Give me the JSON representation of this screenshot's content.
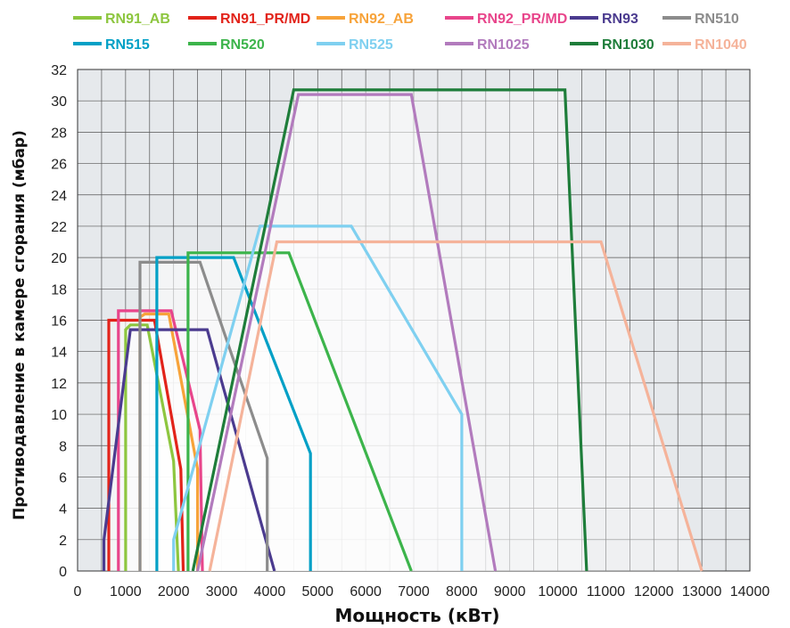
{
  "chart_data": {
    "type": "line",
    "xlabel": "Мощность (кВт)",
    "ylabel": "Противодавление в камере сгорания (мбар)",
    "xlim": [
      0,
      14000
    ],
    "ylim": [
      0,
      32
    ],
    "x_ticks": [
      "0",
      "1000",
      "2000",
      "3000",
      "4000",
      "5000",
      "6000",
      "7000",
      "8000",
      "9000",
      "10000",
      "11000",
      "12000",
      "13000",
      "14000"
    ],
    "y_ticks": [
      "0",
      "2",
      "4",
      "6",
      "8",
      "10",
      "12",
      "14",
      "16",
      "18",
      "20",
      "22",
      "24",
      "26",
      "28",
      "30",
      "32"
    ],
    "grid": true,
    "legend_position": "top",
    "background": "#e6e9ec",
    "series": [
      {
        "name": "RN91_AB",
        "color": "#8dc63f",
        "points": [
          [
            1000,
            0
          ],
          [
            1000,
            15.4
          ],
          [
            1100,
            15.7
          ],
          [
            1450,
            15.7
          ],
          [
            2000,
            7.0
          ],
          [
            2100,
            0
          ]
        ]
      },
      {
        "name": "RN91_PR/MD",
        "color": "#e2231a",
        "points": [
          [
            650,
            0
          ],
          [
            650,
            16.0
          ],
          [
            1600,
            16.0
          ],
          [
            2150,
            6.5
          ],
          [
            2200,
            0
          ]
        ]
      },
      {
        "name": "RN92_AB",
        "color": "#f7a33a",
        "points": [
          [
            1300,
            0
          ],
          [
            1300,
            16.2
          ],
          [
            1400,
            16.4
          ],
          [
            1900,
            16.4
          ],
          [
            2500,
            6.5
          ],
          [
            2500,
            0
          ]
        ]
      },
      {
        "name": "RN92_PR/MD",
        "color": "#e8458b",
        "points": [
          [
            850,
            0
          ],
          [
            850,
            16.6
          ],
          [
            1950,
            16.6
          ],
          [
            2550,
            9.0
          ],
          [
            2600,
            0
          ]
        ]
      },
      {
        "name": "RN93",
        "color": "#4b3b8f",
        "points": [
          [
            550,
            0
          ],
          [
            550,
            2.0
          ],
          [
            1100,
            15.4
          ],
          [
            2700,
            15.4
          ],
          [
            4100,
            0
          ]
        ]
      },
      {
        "name": "RN510",
        "color": "#8c8c8c",
        "points": [
          [
            1300,
            0
          ],
          [
            1300,
            19.7
          ],
          [
            2550,
            19.7
          ],
          [
            3950,
            7.2
          ],
          [
            3950,
            0
          ]
        ]
      },
      {
        "name": "RN515",
        "color": "#00a0c6",
        "points": [
          [
            1650,
            0
          ],
          [
            1650,
            20.0
          ],
          [
            3250,
            20.0
          ],
          [
            4850,
            7.5
          ],
          [
            4850,
            0
          ]
        ]
      },
      {
        "name": "RN520",
        "color": "#3cb44b",
        "points": [
          [
            2300,
            0
          ],
          [
            2300,
            20.3
          ],
          [
            4400,
            20.3
          ],
          [
            6950,
            0
          ]
        ]
      },
      {
        "name": "RN525",
        "color": "#7fd0f0",
        "points": [
          [
            2000,
            0
          ],
          [
            2000,
            2.0
          ],
          [
            3800,
            22.0
          ],
          [
            5700,
            22.0
          ],
          [
            8000,
            10.0
          ],
          [
            8000,
            0
          ]
        ]
      },
      {
        "name": "RN1025",
        "color": "#b27bbd",
        "points": [
          [
            2500,
            0
          ],
          [
            4600,
            30.4
          ],
          [
            6950,
            30.4
          ],
          [
            8700,
            0
          ]
        ]
      },
      {
        "name": "RN1030",
        "color": "#1e7d3a",
        "points": [
          [
            2400,
            0
          ],
          [
            4500,
            30.7
          ],
          [
            10150,
            30.7
          ],
          [
            10600,
            0
          ]
        ]
      },
      {
        "name": "RN1040",
        "color": "#f5b39a",
        "points": [
          [
            2750,
            0
          ],
          [
            4150,
            21.0
          ],
          [
            10900,
            21.0
          ],
          [
            13000,
            0
          ]
        ]
      }
    ]
  }
}
